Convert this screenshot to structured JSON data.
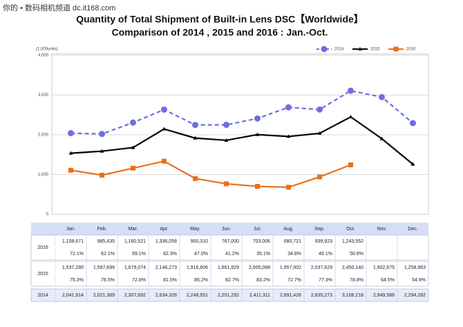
{
  "chart_data": {
    "type": "line",
    "watermark": "你的 • 数码相机频道 dc.it168.com",
    "title": "Quantity of Total Shipment of Built-in Lens DSC【Worldwide】",
    "subtitle": "Comparison of 2014 , 2015 and 2016 : Jan.-Oct.",
    "y_label": "(1,000units)",
    "categories": [
      "Jan.",
      "Feb.",
      "Mar.",
      "Apr.",
      "May.",
      "Jun.",
      "Jul.",
      "Aug.",
      "Sep.",
      "Oct.",
      "Nov.",
      "Dec."
    ],
    "ylim": [
      0,
      4000
    ],
    "yticks": [
      0,
      {
        "value": 1000,
        "label": "1,000"
      },
      {
        "value": 2000,
        "label": "2,000"
      },
      {
        "value": 3000,
        "label": "3,000"
      },
      {
        "value": 4000,
        "label": "4,000"
      }
    ],
    "series": [
      {
        "name": "2014",
        "color": "#6e6ee0",
        "dash": true,
        "marker": "circle",
        "values": [
          2041.914,
          2021.369,
          2307.692,
          2634.326,
          2248.551,
          2251.292,
          2411.311,
          2691.426,
          2635.273,
          3108.218,
          2949.586,
          2294.282
        ],
        "value_labels": [
          "2,041,914",
          "2,021,369",
          "2,307,692",
          "2,634,326",
          "2,248,551",
          "2,251,292",
          "2,411,311",
          "2,691,426",
          "2,635,273",
          "3,108,218",
          "2,949,586",
          "2,294,282"
        ]
      },
      {
        "name": "2015",
        "color": "#000000",
        "dash": false,
        "marker": "triangle",
        "values": [
          1537.28,
          1587.699,
          1679.074,
          2146.273,
          1916.806,
          1861.929,
          2005.088,
          1957.902,
          2037.629,
          2450.14,
          1902.675,
          1258.963
        ],
        "value_labels": [
          "1,537,280",
          "1,587,699",
          "1,679,074",
          "2,146,273",
          "1,916,806",
          "1,861,929",
          "2,005,088",
          "1,957,902",
          "2,037,629",
          "2,450,140",
          "1,902,675",
          "1,258,963"
        ],
        "yoy_labels": [
          "75.3%",
          "78.5%",
          "72.8%",
          "81.5%",
          "85.2%",
          "82.7%",
          "83.2%",
          "72.7%",
          "77.3%",
          "78.8%",
          "64.5%",
          "54.9%"
        ]
      },
      {
        "name": "2016",
        "color": "#e8701a",
        "dash": false,
        "marker": "square",
        "values": [
          1108.671,
          985.435,
          1160.521,
          1336.058,
          900.31,
          767,
          703.006,
          680.721,
          939.923,
          1243.552,
          null,
          null
        ],
        "value_labels": [
          "1,108,671",
          "985,435",
          "1,160,521",
          "1,336,058",
          "900,310",
          "767,000",
          "703,006",
          "680,721",
          "939,923",
          "1,243,552",
          null,
          null
        ],
        "yoy_labels": [
          "72.1%",
          "62.1%",
          "69.1%",
          "62.3%",
          "47.0%",
          "41.2%",
          "35.1%",
          "34.8%",
          "46.1%",
          "50.8%",
          null,
          null
        ]
      }
    ],
    "legend": "top-right"
  }
}
